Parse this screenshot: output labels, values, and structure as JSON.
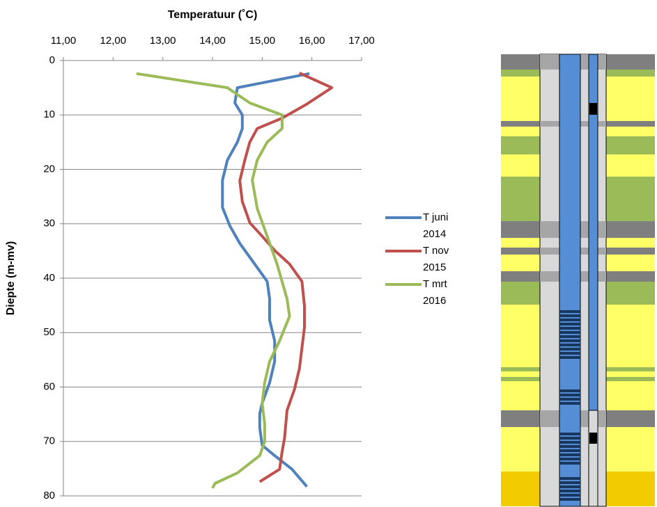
{
  "chart_data": {
    "type": "line",
    "title": "Temperatuur (˚C)",
    "y_label": "Diepte (m-mv)",
    "xlim": [
      11,
      17
    ],
    "xticks": [
      {
        "value": 11,
        "label": "11,00"
      },
      {
        "value": 12,
        "label": "12,00"
      },
      {
        "value": 13,
        "label": "13,00"
      },
      {
        "value": 14,
        "label": "14,00"
      },
      {
        "value": 15,
        "label": "15,00"
      },
      {
        "value": 16,
        "label": "16,00"
      },
      {
        "value": 17,
        "label": "17,00"
      }
    ],
    "ylim": [
      0,
      80
    ],
    "yticks": [
      0,
      10,
      20,
      30,
      40,
      50,
      60,
      70,
      80
    ],
    "y_inverted": true,
    "grid": true,
    "legend": "right",
    "series": [
      {
        "name": "T juni 2014",
        "color": "#4f81bd",
        "x": [
          15.95,
          14.5,
          14.45,
          14.6,
          14.6,
          14.5,
          14.3,
          14.2,
          14.2,
          14.35,
          14.55,
          14.85,
          15.1,
          15.15,
          15.15,
          15.25,
          15.25,
          15.15,
          15.0,
          14.95,
          14.95,
          15.0,
          15.25,
          15.6,
          15.9
        ],
        "y": [
          2.4,
          5,
          7.8,
          10,
          12.5,
          15,
          18.3,
          22,
          27,
          30.4,
          33.6,
          37.4,
          40.6,
          43.8,
          47.7,
          51.5,
          55.3,
          59.2,
          63,
          64.9,
          67.5,
          70.7,
          72.6,
          75.1,
          78.3
        ]
      },
      {
        "name": "T nov 2015",
        "color": "#c0504d",
        "x": [
          15.75,
          16.4,
          15.9,
          15.4,
          14.9,
          14.75,
          14.65,
          14.55,
          14.6,
          14.75,
          15.0,
          15.25,
          15.55,
          15.8,
          15.85,
          15.85,
          15.8,
          15.75,
          15.65,
          15.5,
          15.45,
          15.4,
          15.35,
          14.95
        ],
        "y": [
          2.3,
          5,
          8,
          10.6,
          12.5,
          15,
          18.3,
          22.1,
          25.9,
          29.8,
          32.3,
          34.9,
          37.4,
          40.6,
          45.1,
          49,
          52.8,
          56.6,
          60.4,
          64.3,
          69.4,
          71.9,
          75.1,
          77.4
        ]
      },
      {
        "name": "T mrt 2016",
        "color": "#9bbb59",
        "x": [
          12.47,
          14.3,
          14.75,
          15.4,
          15.4,
          15.1,
          14.9,
          14.8,
          14.9,
          15.1,
          15.3,
          15.5,
          15.55,
          15.35,
          15.15,
          15.05,
          15.0,
          15.05,
          15.05,
          14.95,
          14.5,
          14.05,
          14.0
        ],
        "y": [
          2.4,
          5,
          7.8,
          10,
          12.5,
          15,
          18.3,
          22,
          27.2,
          32.3,
          37.4,
          43.8,
          47,
          51.5,
          55.3,
          59.2,
          63,
          66.8,
          70,
          72.6,
          75.8,
          77.7,
          78.6
        ]
      }
    ]
  }
}
